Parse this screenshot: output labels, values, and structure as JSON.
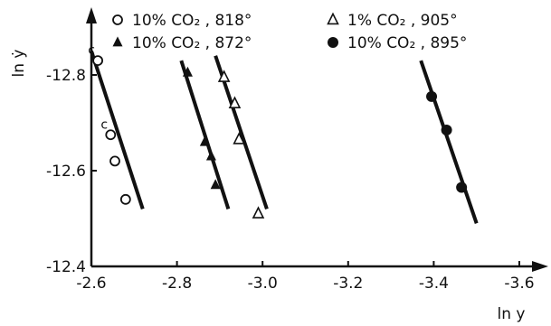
{
  "chart_data": {
    "type": "scatter",
    "xlabel": "ln y",
    "ylabel": "ln ẏ",
    "xlim": [
      -2.6,
      -3.6
    ],
    "ylim": [
      -12.4,
      -12.9
    ],
    "x_ticks": [
      -2.6,
      -2.8,
      -3.0,
      -3.2,
      -3.4,
      -3.6
    ],
    "x_tick_labels": [
      "-2.6",
      "-2.8",
      "-3.0",
      "-3.2",
      "-3.4",
      "-3.6"
    ],
    "y_ticks": [
      -12.4,
      -12.6,
      -12.8
    ],
    "y_tick_labels": [
      "-12.4",
      "-12.6",
      "-12.8"
    ],
    "grid": false,
    "legend_position": "top",
    "series": [
      {
        "name": "10% CO2, 818°",
        "legend_label": "10% CO₂ , 818°",
        "marker": "open-circle",
        "color": "#111111",
        "points": [
          [
            -2.615,
            -12.83
          ],
          [
            -2.645,
            -12.675
          ],
          [
            -2.655,
            -12.62
          ],
          [
            -2.68,
            -12.54
          ]
        ],
        "point_labels": [
          "c",
          "c",
          "",
          ""
        ],
        "fit_line": [
          [
            -2.6,
            -12.85
          ],
          [
            -2.72,
            -12.52
          ]
        ]
      },
      {
        "name": "10% CO2, 872°",
        "legend_label": "10% CO₂ , 872°",
        "marker": "filled-triangle",
        "color": "#111111",
        "points": [
          [
            -2.825,
            -12.805
          ],
          [
            -2.865,
            -12.66
          ],
          [
            -2.88,
            -12.63
          ],
          [
            -2.89,
            -12.57
          ]
        ],
        "fit_line": [
          [
            -2.81,
            -12.83
          ],
          [
            -2.92,
            -12.52
          ]
        ]
      },
      {
        "name": "1% CO2, 905°",
        "legend_label": "1% CO₂ , 905°",
        "marker": "open-triangle",
        "color": "#111111",
        "points": [
          [
            -2.91,
            -12.795
          ],
          [
            -2.935,
            -12.74
          ],
          [
            -2.945,
            -12.665
          ],
          [
            -2.99,
            -12.51
          ]
        ],
        "fit_line": [
          [
            -2.89,
            -12.84
          ],
          [
            -3.01,
            -12.52
          ]
        ]
      },
      {
        "name": "10% CO2, 895°",
        "legend_label": "10% CO₂ , 895°",
        "marker": "filled-circle",
        "color": "#111111",
        "points": [
          [
            -3.395,
            -12.755
          ],
          [
            -3.43,
            -12.685
          ],
          [
            -3.465,
            -12.565
          ]
        ],
        "fit_line": [
          [
            -3.37,
            -12.83
          ],
          [
            -3.5,
            -12.49
          ]
        ]
      }
    ]
  }
}
